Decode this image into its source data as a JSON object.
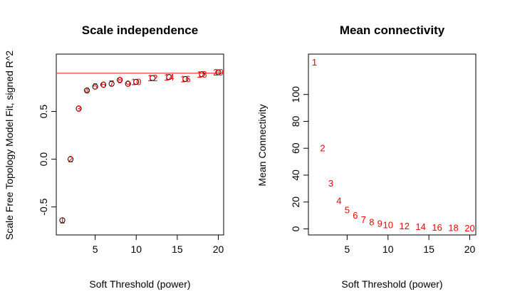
{
  "chart_data": [
    {
      "type": "scatter",
      "title": "Scale independence",
      "xlabel": "Soft Threshold (power)",
      "ylabel": "Scale Free Topology Model Fit, signed R^2",
      "xlim": [
        1,
        20
      ],
      "ylim": [
        -0.7,
        1.0
      ],
      "xticks": [
        5,
        10,
        15,
        20
      ],
      "yticks": [
        -0.5,
        0.0,
        0.5
      ],
      "ytick_labels": [
        "-0.5",
        "0.0",
        "0.5"
      ],
      "hline": {
        "y": 0.9,
        "color": "#ff0000"
      },
      "marker": "open-circle",
      "label_color": "#ff0000",
      "points": [
        {
          "x": 1,
          "y": -0.64,
          "label": "1"
        },
        {
          "x": 2,
          "y": 0.0,
          "label": "2"
        },
        {
          "x": 3,
          "y": 0.53,
          "label": "3"
        },
        {
          "x": 4,
          "y": 0.72,
          "label": "4"
        },
        {
          "x": 5,
          "y": 0.76,
          "label": "5"
        },
        {
          "x": 6,
          "y": 0.78,
          "label": "6"
        },
        {
          "x": 7,
          "y": 0.79,
          "label": "7"
        },
        {
          "x": 8,
          "y": 0.83,
          "label": "8"
        },
        {
          "x": 9,
          "y": 0.79,
          "label": "9"
        },
        {
          "x": 10,
          "y": 0.81,
          "label": "10"
        },
        {
          "x": 12,
          "y": 0.85,
          "label": "12"
        },
        {
          "x": 14,
          "y": 0.86,
          "label": "14"
        },
        {
          "x": 16,
          "y": 0.84,
          "label": "16"
        },
        {
          "x": 18,
          "y": 0.89,
          "label": "18"
        },
        {
          "x": 20,
          "y": 0.91,
          "label": "20"
        }
      ]
    },
    {
      "type": "scatter",
      "title": "Mean connectivity",
      "xlabel": "Soft Threshold (power)",
      "ylabel": "Mean Connectivity",
      "xlim": [
        1,
        20
      ],
      "ylim": [
        0,
        125
      ],
      "xticks": [
        5,
        10,
        15,
        20
      ],
      "yticks": [
        0,
        20,
        40,
        60,
        80,
        100
      ],
      "ytick_labels": [
        "0",
        "20",
        "40",
        "60",
        "80",
        "100"
      ],
      "label_color": "#ff0000",
      "points": [
        {
          "x": 1,
          "y": 124,
          "label": "1"
        },
        {
          "x": 2,
          "y": 60,
          "label": "2"
        },
        {
          "x": 3,
          "y": 34,
          "label": "3"
        },
        {
          "x": 4,
          "y": 21,
          "label": "4"
        },
        {
          "x": 5,
          "y": 14,
          "label": "5"
        },
        {
          "x": 6,
          "y": 10,
          "label": "6"
        },
        {
          "x": 7,
          "y": 7,
          "label": "7"
        },
        {
          "x": 8,
          "y": 5,
          "label": "8"
        },
        {
          "x": 9,
          "y": 4,
          "label": "9"
        },
        {
          "x": 10,
          "y": 3,
          "label": "10"
        },
        {
          "x": 12,
          "y": 2,
          "label": "12"
        },
        {
          "x": 14,
          "y": 1.5,
          "label": "14"
        },
        {
          "x": 16,
          "y": 1,
          "label": "16"
        },
        {
          "x": 18,
          "y": 0.8,
          "label": "18"
        },
        {
          "x": 20,
          "y": 0.6,
          "label": "20"
        }
      ]
    }
  ]
}
